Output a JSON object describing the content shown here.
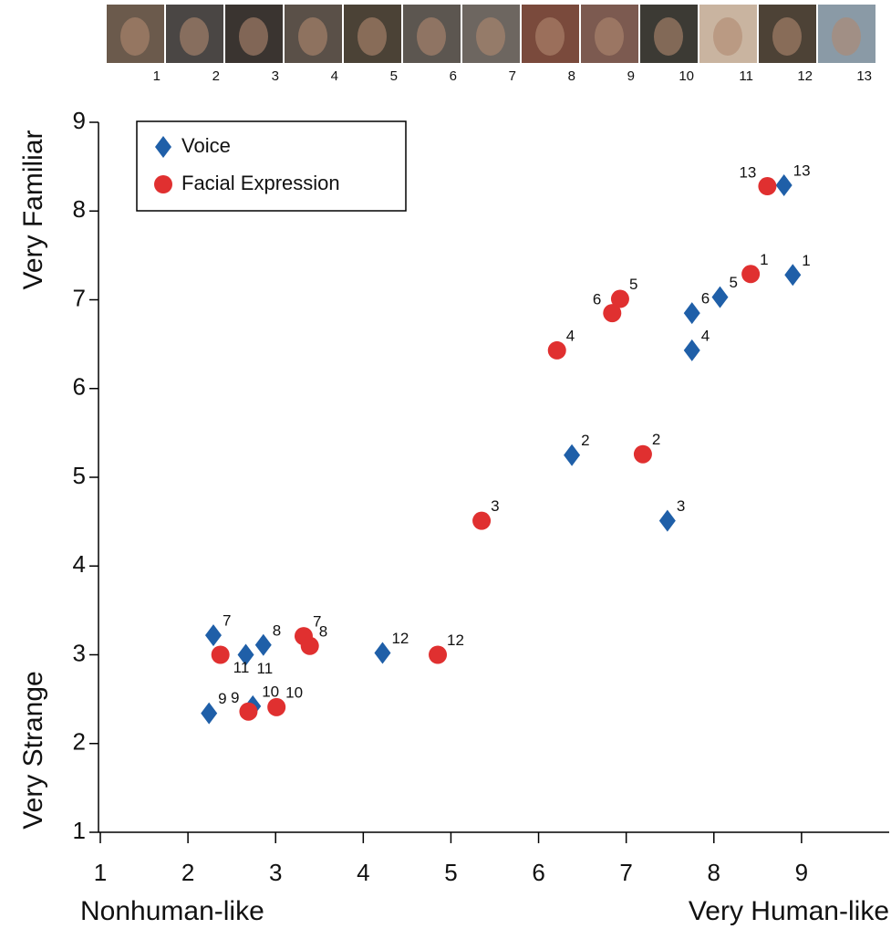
{
  "chart_data": {
    "type": "scatter",
    "thumbnail_labels": [
      "1",
      "2",
      "3",
      "4",
      "5",
      "6",
      "7",
      "8",
      "9",
      "10",
      "11",
      "12",
      "13"
    ],
    "y_label_top": "Very Familiar",
    "y_label_bottom": "Very Strange",
    "x_label_left": "Nonhuman-like",
    "x_label_right": "Very Human-like",
    "xlim": [
      1,
      10
    ],
    "xticks": [
      1,
      2,
      3,
      4,
      5,
      6,
      7,
      8,
      9
    ],
    "ylim": [
      1,
      9
    ],
    "yticks": [
      1,
      2,
      3,
      4,
      5,
      6,
      7,
      8,
      9
    ],
    "legend": "upper left",
    "series": [
      {
        "name": "Voice",
        "color": "#1f5fa8",
        "marker": "diamond",
        "labels": [
          "1",
          "2",
          "3",
          "4",
          "5",
          "6",
          "7",
          "8",
          "9",
          "10",
          "11",
          "12",
          "13"
        ],
        "x": [
          8.9,
          6.38,
          7.47,
          7.75,
          8.07,
          7.75,
          2.29,
          2.86,
          2.24,
          2.74,
          2.66,
          4.22,
          8.8
        ],
        "y": [
          7.28,
          5.25,
          4.51,
          6.43,
          7.03,
          6.85,
          3.22,
          3.11,
          2.34,
          2.42,
          3.0,
          3.02,
          8.29
        ]
      },
      {
        "name": "Facial Expression",
        "color": "#e03030",
        "marker": "circle",
        "labels": [
          "1",
          "2",
          "3",
          "4",
          "5",
          "6",
          "7",
          "8",
          "9",
          "10",
          "11",
          "12",
          "13"
        ],
        "x": [
          8.42,
          7.19,
          5.35,
          6.21,
          6.93,
          6.84,
          3.32,
          3.39,
          2.69,
          3.01,
          2.37,
          4.85,
          8.61
        ],
        "y": [
          7.29,
          5.26,
          4.51,
          6.43,
          7.01,
          6.85,
          3.21,
          3.1,
          2.36,
          2.41,
          3.0,
          3.0,
          8.28
        ]
      }
    ]
  }
}
